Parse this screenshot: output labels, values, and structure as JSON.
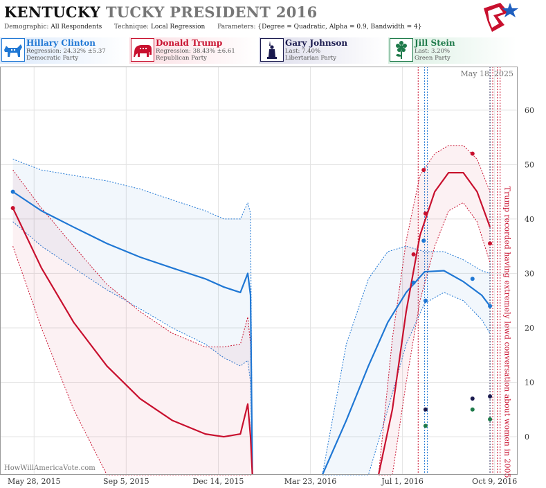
{
  "header": {
    "title_main": "KENTUCKY",
    "title_sub": "TUCKY PRESIDENT 2016",
    "demographic_label": "Demographic:",
    "demographic": "All Respondents",
    "technique_label": "Technique:",
    "technique": "Local Regression",
    "parameters_label": "Parameters:",
    "parameters": "{Degree = Quadratic, Alpha = 0.9, Bandwidth = 4}"
  },
  "candidates": [
    {
      "name": "Hillary Clinton",
      "stat": "Regression: 24.32% ±5.37",
      "party": "Democratic Party",
      "color": "#1f77d4",
      "icon": "donkey-icon"
    },
    {
      "name": "Donald Trump",
      "stat": "Regression: 38.43% ±6.61",
      "party": "Republican Party",
      "color": "#c8102e",
      "icon": "elephant-icon"
    },
    {
      "name": "Gary Johnson",
      "stat": "Last: 7.40%",
      "party": "Libertarian Party",
      "color": "#1a1a4e",
      "icon": "liberty-statue-icon"
    },
    {
      "name": "Jill Stein",
      "stat": "Last: 3.20%",
      "party": "Green Party",
      "color": "#1e7a4a",
      "icon": "flower-icon"
    }
  ],
  "chart_data": {
    "type": "line",
    "date_label": "May 18, 2025",
    "watermark": "HowWillAmericaVote.com",
    "annotation": "Trump recorded having extremely lewd conversation about women in 2005",
    "ylim": [
      -7,
      68
    ],
    "yticks": [
      0,
      10,
      20,
      30,
      40,
      50,
      60
    ],
    "xrange": [
      "2015-04-21",
      "2016-11-03"
    ],
    "xticks": [
      {
        "date": "2015-05-28",
        "label": "May 28, 2015"
      },
      {
        "date": "2015-09-05",
        "label": "Sep 5, 2015"
      },
      {
        "date": "2015-12-14",
        "label": "Dec 14, 2015"
      },
      {
        "date": "2016-03-23",
        "label": "Mar 23, 2016"
      },
      {
        "date": "2016-07-01",
        "label": "Jul 1, 2016"
      },
      {
        "date": "2016-10-09",
        "label": "Oct 9, 2016"
      }
    ],
    "gridlines": [
      "2015-05-28",
      "2015-09-05",
      "2015-12-14",
      "2016-03-23",
      "2016-07-01",
      "2016-10-09"
    ],
    "event_lines": [
      {
        "date": "2016-07-18",
        "color": "#c8102e"
      },
      {
        "date": "2016-07-25",
        "color": "#1f77d4"
      },
      {
        "date": "2016-07-28",
        "color": "#1f77d4"
      },
      {
        "date": "2016-10-04",
        "color": "#1a1a4e"
      },
      {
        "date": "2016-10-07",
        "color": "#c8102e"
      },
      {
        "date": "2016-10-12",
        "color": "#c8102e"
      },
      {
        "date": "2016-10-15",
        "color": "#c8102e"
      }
    ],
    "series": [
      {
        "name": "Hillary Clinton",
        "color": "#1f77d4",
        "points": [
          {
            "x": "2015-05-05",
            "y": 45.0
          },
          {
            "x": "2016-07-13",
            "y": 28.3
          },
          {
            "x": "2016-07-24",
            "y": 36.0
          },
          {
            "x": "2016-07-26",
            "y": 25.0
          },
          {
            "x": "2016-09-15",
            "y": 29.0
          },
          {
            "x": "2016-10-04",
            "y": 24.0
          }
        ],
        "segments": [
          {
            "x": [
              "2015-05-05",
              "2015-06-05",
              "2015-07-10",
              "2015-08-15",
              "2015-09-20",
              "2015-10-25",
              "2015-11-30",
              "2015-12-20",
              "2016-01-07",
              "2016-01-15",
              "2016-01-18",
              "2016-01-20"
            ],
            "mid": [
              45.0,
              41.5,
              38.5,
              35.5,
              33.0,
              31.0,
              29.0,
              27.5,
              26.5,
              30.0,
              26.0,
              -7.0
            ],
            "lo": [
              39.5,
              35.0,
              31.0,
              27.0,
              23.5,
              20.0,
              17.0,
              14.5,
              13.0,
              14.0,
              10.0,
              -7.0
            ],
            "hi": [
              51.0,
              49.0,
              48.0,
              47.0,
              45.5,
              43.5,
              41.5,
              40.0,
              40.0,
              43.0,
              41.0,
              -7.0
            ]
          },
          {
            "x": [
              "2016-04-05",
              "2016-05-01",
              "2016-05-25",
              "2016-06-15",
              "2016-07-05",
              "2016-07-25",
              "2016-08-15",
              "2016-09-05",
              "2016-09-25",
              "2016-10-04"
            ],
            "mid": [
              -7.0,
              3.0,
              13.0,
              21.0,
              26.5,
              30.3,
              30.5,
              28.5,
              26.0,
              24.0
            ],
            "lo": [
              -7.0,
              -7.0,
              -7.0,
              5.0,
              17.0,
              24.5,
              26.5,
              25.0,
              21.5,
              19.0
            ],
            "hi": [
              -7.0,
              17.0,
              29.0,
              34.0,
              35.0,
              34.0,
              34.0,
              32.5,
              30.5,
              30.0
            ]
          }
        ]
      },
      {
        "name": "Donald Trump",
        "color": "#c8102e",
        "points": [
          {
            "x": "2015-05-05",
            "y": 42.0
          },
          {
            "x": "2016-07-13",
            "y": 33.5
          },
          {
            "x": "2016-07-24",
            "y": 49.0
          },
          {
            "x": "2016-07-26",
            "y": 41.0
          },
          {
            "x": "2016-09-15",
            "y": 52.0
          },
          {
            "x": "2016-10-04",
            "y": 35.5
          }
        ],
        "segments": [
          {
            "x": [
              "2015-05-05",
              "2015-06-05",
              "2015-07-10",
              "2015-08-15",
              "2015-09-20",
              "2015-10-25",
              "2015-11-30",
              "2015-12-20",
              "2016-01-07",
              "2016-01-15",
              "2016-01-18",
              "2016-01-20"
            ],
            "mid": [
              42.0,
              31.0,
              21.0,
              13.0,
              7.0,
              3.0,
              0.5,
              0.0,
              0.5,
              6.0,
              0.0,
              -7.0
            ],
            "lo": [
              35.0,
              20.0,
              5.0,
              -7.0,
              -7.0,
              -7.0,
              -7.0,
              -7.0,
              -7.0,
              -7.0,
              -7.0,
              -7.0
            ],
            "hi": [
              49.0,
              42.0,
              35.0,
              28.0,
              23.0,
              19.0,
              16.5,
              16.5,
              17.0,
              22.0,
              17.0,
              -7.0
            ]
          },
          {
            "x": [
              "2016-06-05",
              "2016-06-20",
              "2016-07-05",
              "2016-07-20",
              "2016-08-05",
              "2016-08-20",
              "2016-09-05",
              "2016-09-20",
              "2016-10-04"
            ],
            "mid": [
              -7.0,
              5.0,
              23.0,
              37.0,
              45.0,
              48.5,
              48.5,
              45.0,
              38.5
            ],
            "lo": [
              -7.0,
              -7.0,
              10.0,
              25.0,
              35.0,
              41.5,
              43.0,
              39.5,
              32.0
            ],
            "hi": [
              -7.0,
              18.0,
              36.0,
              48.0,
              52.0,
              53.5,
              53.5,
              51.0,
              45.0
            ]
          }
        ]
      },
      {
        "name": "Gary Johnson",
        "color": "#1a1a4e",
        "points": [
          {
            "x": "2016-07-26",
            "y": 5.0
          },
          {
            "x": "2016-09-15",
            "y": 7.0
          },
          {
            "x": "2016-10-04",
            "y": 7.4
          }
        ]
      },
      {
        "name": "Jill Stein",
        "color": "#1e7a4a",
        "points": [
          {
            "x": "2016-07-26",
            "y": 2.0
          },
          {
            "x": "2016-09-15",
            "y": 5.0
          },
          {
            "x": "2016-10-04",
            "y": 3.2
          }
        ]
      }
    ]
  }
}
